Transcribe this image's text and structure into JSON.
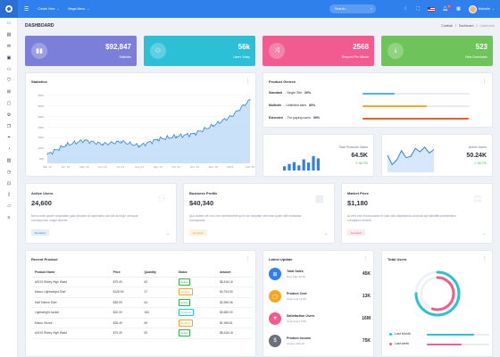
{
  "topbar": {
    "create_new": "Create New",
    "mega_menu": "Mega Menu",
    "search_placeholder": "Search...",
    "user_name": "Michelle",
    "notif_count": "2"
  },
  "page": {
    "title": "DASHBOARD",
    "breadcrumbs": [
      "Codelab",
      "Dashboard",
      "Dashboard"
    ]
  },
  "stats": [
    {
      "value": "$92,847",
      "label": "Statistics",
      "color": "#7b7fd9",
      "icon": "chart-icon"
    },
    {
      "value": "56k",
      "label": "Users Today",
      "color": "#2bc0d6",
      "icon": "users-icon"
    },
    {
      "value": "2568",
      "label": "Request Per Minute",
      "color": "#f25b8f",
      "icon": "shuffle-icon"
    },
    {
      "value": "523",
      "label": "New Downloads",
      "color": "#6ec45a",
      "icon": "download-icon"
    }
  ],
  "statistics": {
    "title": "Statistics",
    "y_ticks": [
      "3500",
      "3000",
      "2500",
      "2000",
      "1500",
      "1000",
      "500"
    ],
    "x_ticks": [
      "Mar '12",
      "Apr '12",
      "May '12",
      "Jun '12",
      "Jul '12",
      "Aug '12",
      "Sep '12",
      "Oct '12",
      "Nov '12",
      "Dec '12",
      "2013",
      "Feb '13"
    ]
  },
  "chart_data": {
    "type": "area",
    "title": "Statistics",
    "xlabel": "",
    "ylabel": "",
    "ylim": [
      300,
      3700
    ],
    "categories": [
      "Mar '12",
      "Apr '12",
      "May '12",
      "Jun '12",
      "Jul '12",
      "Aug '12",
      "Sep '12",
      "Oct '12",
      "Nov '12",
      "Dec '12",
      "2013",
      "Feb '13"
    ],
    "values": [
      720,
      1150,
      1380,
      1200,
      1320,
      1120,
      1430,
      1560,
      1700,
      2080,
      2520,
      3280
    ],
    "grid": true,
    "color": "#2f80ed"
  },
  "genres": {
    "title": "Product Genres",
    "items": [
      {
        "name": "Standard",
        "desc": "- Single Site",
        "pct": "30%",
        "value": 0.3,
        "color": "#4ab3f4"
      },
      {
        "name": "Multisite",
        "desc": "- Unlimited sites",
        "pct": "60%",
        "value": 0.6,
        "color": "#f5a623"
      },
      {
        "name": "Extended",
        "desc": "- For paying users",
        "pct": "99%",
        "value": 0.99,
        "color": "#ef5a28"
      }
    ]
  },
  "sales_kpi": {
    "label": "Total Products Sales",
    "value": "64.5K",
    "trend": "30.7%",
    "bars": [
      0.18,
      0.28,
      0.36,
      0.22,
      0.48,
      0.34,
      0.62,
      0.52,
      0.78,
      1.0
    ]
  },
  "users_kpi": {
    "label": "Active Users",
    "value": "50.24K",
    "trend": "30.7%",
    "line": [
      0.5,
      0.9,
      0.7,
      0.3,
      0.6,
      0.55,
      0.2,
      0.35,
      0.15,
      0.4,
      0.25
    ]
  },
  "info_cards": [
    {
      "title": "Active Users",
      "value": "24,600",
      "desc": "Nemo enim ipsam voluptatem quia voluptas sit aspernatur aut odit aut fugit, sed quia consequuntur magni dolores",
      "tag": "Excellent",
      "tag_color": "#2f80ed",
      "icon": "user-icon"
    },
    {
      "title": "Business Profile",
      "value": "$40,340",
      "desc": "Quis autem vel eum iure reprehenderit qui in ea voluptate velit esse quam nihil molestiae consequatur",
      "tag": "Excellent",
      "tag_color": "#f5a623",
      "icon": "building-icon"
    },
    {
      "title": "Market Price",
      "value": "$1,180",
      "desc": "At vero eos et accusamus et iusto odio dignissimos ducimus qui blanditiis praesentium voluptatum deleniti",
      "tag": "Excellent",
      "tag_color": "#f25b8f",
      "icon": "scale-icon"
    }
  ],
  "recent": {
    "title": "Recent Product",
    "headers": [
      "Product Name",
      "Price",
      "Quantity",
      "Status",
      "Amount"
    ],
    "rows": [
      {
        "name": "ASOS Ridley High Waist",
        "price": "$79.49",
        "qty": "82",
        "status": "Active",
        "status_color": "#2fb34a",
        "amount": "$6,518.18"
      },
      {
        "name": "Marco Lightweight Shirt",
        "price": "$128.50",
        "qty": "37",
        "status": "Pending",
        "status_color": "#f5a623",
        "amount": "$4,754.50"
      },
      {
        "name": "Half Sleeve Shirt",
        "price": "$39.99",
        "qty": "64",
        "status": "Active",
        "status_color": "#2fb34a",
        "amount": "$2,559.36"
      },
      {
        "name": "Lightweight Jacket",
        "price": "$20.00",
        "qty": "184",
        "status": "Progress",
        "status_color": "#2bc0d6",
        "amount": "$3,680.00"
      },
      {
        "name": "Marco Shoes",
        "price": "$28.49",
        "qty": "69",
        "status": "Pending",
        "status_color": "#f5a623",
        "amount": "$1,965.81"
      },
      {
        "name": "ASOS Ridley High Waist",
        "price": "$79.49",
        "qty": "82",
        "status": "Active",
        "status_color": "#2fb34a",
        "amount": "$6,518.18"
      }
    ]
  },
  "updates": {
    "title": "Latest Update",
    "items": [
      {
        "title": "Total Sales",
        "sub": "New Sale 30.5K",
        "value": "45K",
        "color": "#2f80ed",
        "icon": "cart-icon"
      },
      {
        "title": "Product Cost",
        "sub": "Total Cost 12.5K",
        "value": "13K",
        "color": "#f5a623",
        "icon": "box-icon"
      },
      {
        "title": "Satisfaction Users",
        "sub": "Total Users 0.9K",
        "value": "16M",
        "color": "#f25b8f",
        "icon": "heart-icon"
      },
      {
        "title": "Product Income",
        "sub": "Income 100.4K",
        "value": "75K",
        "color": "#6b6f7c",
        "icon": "dollar-icon"
      }
    ]
  },
  "total_users": {
    "title": "Total Users",
    "series": [
      {
        "name": "Last Month",
        "value": 0.75,
        "color": "#2bc0d6"
      },
      {
        "name": "Last week",
        "value": 0.55,
        "color": "#f25b8f"
      }
    ]
  }
}
